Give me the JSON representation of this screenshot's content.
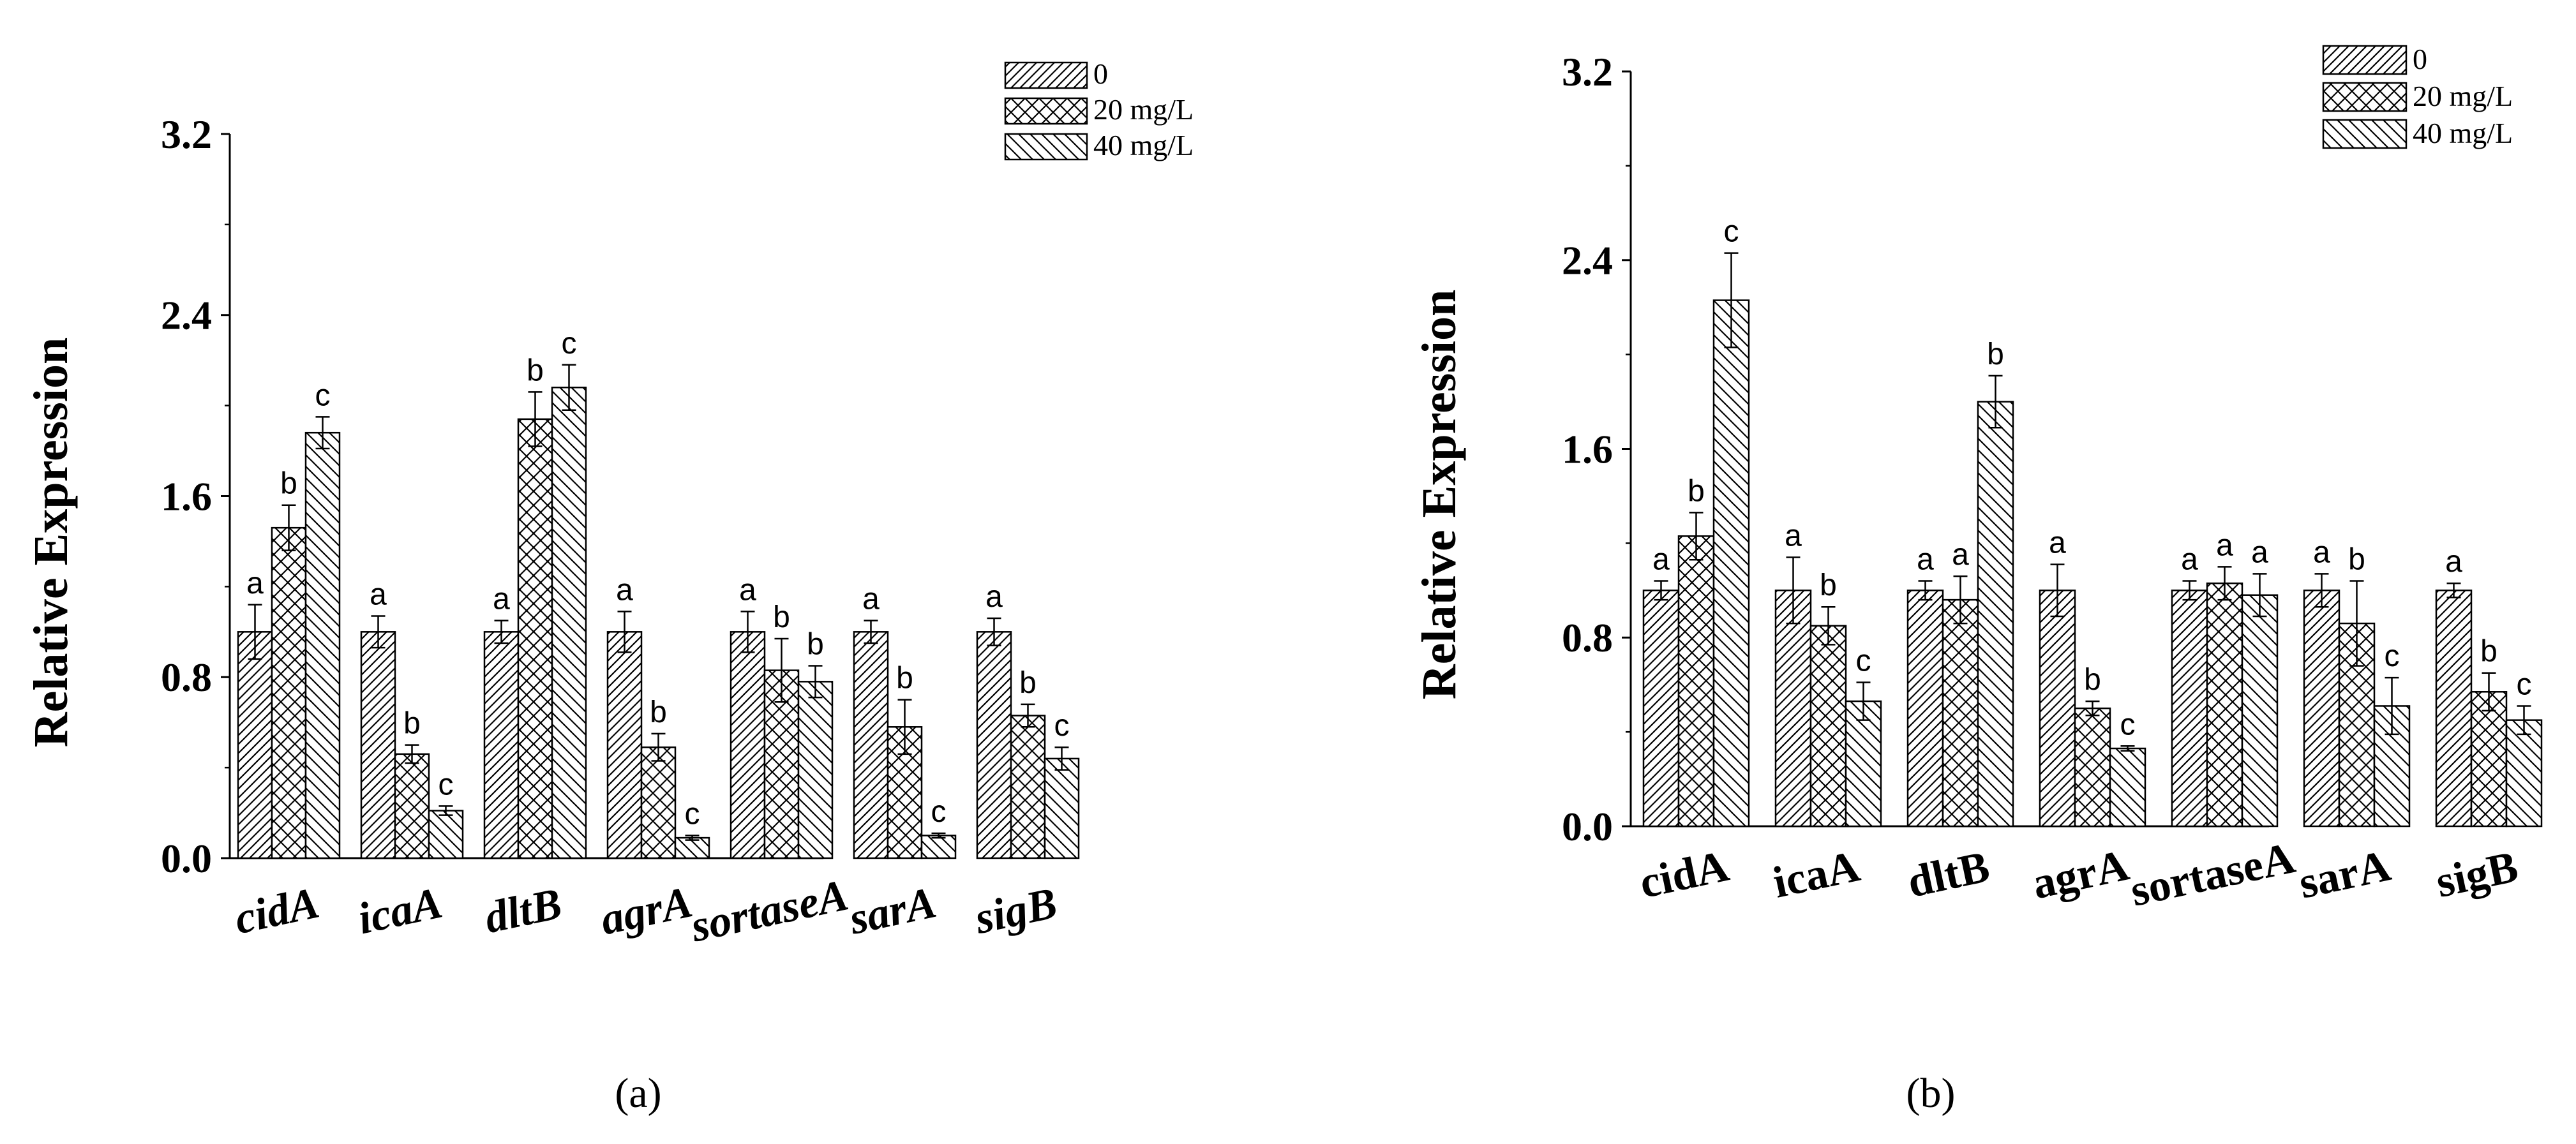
{
  "chart_data": [
    {
      "type": "bar",
      "panel_label": "(a)",
      "ylabel": "Relative Expression",
      "ylim": [
        0.0,
        3.2
      ],
      "yticks": [
        "0.0",
        "0.8",
        "1.6",
        "2.4",
        "3.2"
      ],
      "categories": [
        "cidA",
        "icaA",
        "dltB",
        "agrA",
        "sortaseA",
        "sarA",
        "sigB"
      ],
      "category_style": "italic",
      "legend_position": "top-right",
      "series": [
        {
          "name": "0",
          "pattern": "diagonal-forward",
          "values": [
            1.0,
            1.0,
            1.0,
            1.0,
            1.0,
            1.0,
            1.0
          ],
          "errors": [
            0.12,
            0.07,
            0.05,
            0.09,
            0.09,
            0.05,
            0.06
          ],
          "letters": [
            "a",
            "a",
            "a",
            "a",
            "a",
            "a",
            "a"
          ]
        },
        {
          "name": "20 mg/L",
          "pattern": "crosshatch",
          "values": [
            1.46,
            0.46,
            1.94,
            0.49,
            0.83,
            0.58,
            0.63
          ],
          "errors": [
            0.1,
            0.04,
            0.12,
            0.06,
            0.14,
            0.12,
            0.05
          ],
          "letters": [
            "b",
            "b",
            "b",
            "b",
            "b",
            "b",
            "b"
          ]
        },
        {
          "name": "40 mg/L",
          "pattern": "diagonal-back",
          "values": [
            1.88,
            0.21,
            2.08,
            0.09,
            0.78,
            0.1,
            0.44
          ],
          "errors": [
            0.07,
            0.02,
            0.1,
            0.01,
            0.07,
            0.01,
            0.05
          ],
          "letters": [
            "c",
            "c",
            "c",
            "c",
            "b",
            "c",
            "c"
          ]
        }
      ]
    },
    {
      "type": "bar",
      "panel_label": "(b)",
      "ylabel": "Relative Expression",
      "ylim": [
        0.0,
        3.2
      ],
      "yticks": [
        "0.0",
        "0.8",
        "1.6",
        "2.4",
        "3.2"
      ],
      "categories": [
        "cidA",
        "icaA",
        "dltB",
        "agrA",
        "sortaseA",
        "sarA",
        "sigB"
      ],
      "category_style": "normal",
      "legend_position": "top-right",
      "series": [
        {
          "name": "0",
          "pattern": "diagonal-forward",
          "values": [
            1.0,
            1.0,
            1.0,
            1.0,
            1.0,
            1.0,
            1.0
          ],
          "errors": [
            0.04,
            0.14,
            0.04,
            0.11,
            0.04,
            0.07,
            0.03
          ],
          "letters": [
            "a",
            "a",
            "a",
            "a",
            "a",
            "a",
            "a"
          ]
        },
        {
          "name": "20 mg/L",
          "pattern": "crosshatch",
          "values": [
            1.23,
            0.85,
            0.96,
            0.5,
            1.03,
            0.86,
            0.57
          ],
          "errors": [
            0.1,
            0.08,
            0.1,
            0.03,
            0.07,
            0.18,
            0.08
          ],
          "letters": [
            "b",
            "b",
            "a",
            "b",
            "a",
            "b",
            "b"
          ]
        },
        {
          "name": "40 mg/L",
          "pattern": "diagonal-back",
          "values": [
            2.23,
            0.53,
            1.8,
            0.33,
            0.98,
            0.51,
            0.45
          ],
          "errors": [
            0.2,
            0.08,
            0.11,
            0.01,
            0.09,
            0.12,
            0.06
          ],
          "letters": [
            "c",
            "c",
            "b",
            "c",
            "a",
            "c",
            "c"
          ]
        }
      ]
    }
  ]
}
